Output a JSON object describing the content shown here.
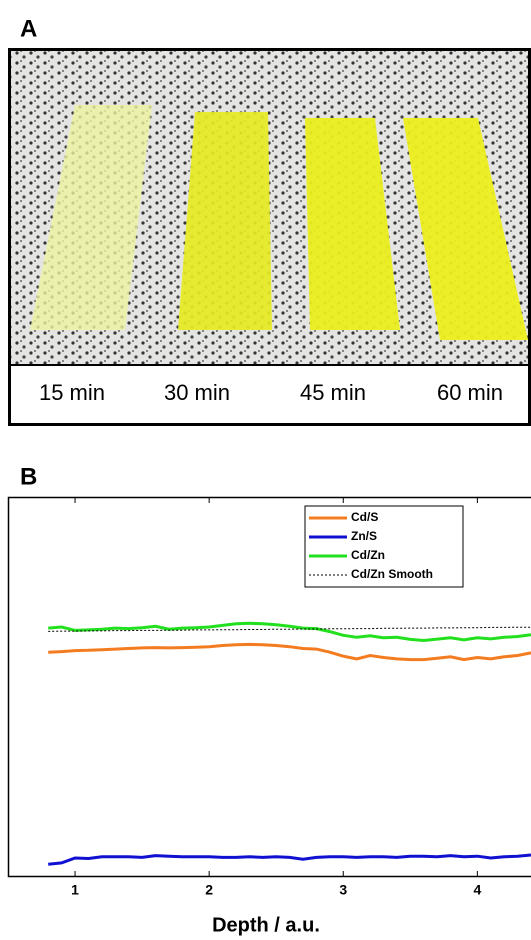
{
  "panel_a": {
    "label": "A",
    "captions": [
      "15 min",
      "30 min",
      "45 min",
      "60 min"
    ]
  },
  "chart_data": {
    "type": "line",
    "label": "B",
    "x_label": "Depth / a.u.",
    "log_y": true,
    "legend": "upper right",
    "xlim": [
      0.5,
      4.4
    ],
    "xticks": [
      1,
      2,
      3,
      4
    ],
    "ylim": [
      0.09,
      20
    ],
    "x": [
      0.8,
      0.9,
      1.0,
      1.1,
      1.2,
      1.3,
      1.4,
      1.5,
      1.6,
      1.7,
      1.8,
      1.9,
      2.0,
      2.1,
      2.2,
      2.3,
      2.4,
      2.5,
      2.6,
      2.7,
      2.8,
      2.9,
      3.0,
      3.1,
      3.2,
      3.3,
      3.4,
      3.5,
      3.6,
      3.7,
      3.8,
      3.9,
      4.0,
      4.1,
      4.2,
      4.3,
      4.4
    ],
    "series": [
      {
        "name": "Cd/S",
        "color": "#f47c20",
        "style": "solid",
        "values": [
          2.2,
          2.22,
          2.25,
          2.26,
          2.28,
          2.3,
          2.32,
          2.34,
          2.35,
          2.34,
          2.35,
          2.36,
          2.38,
          2.42,
          2.45,
          2.46,
          2.45,
          2.42,
          2.38,
          2.32,
          2.3,
          2.2,
          2.08,
          2.0,
          2.1,
          2.04,
          2.0,
          1.98,
          1.98,
          2.02,
          2.06,
          1.98,
          2.04,
          2.0,
          2.06,
          2.1,
          2.18
        ]
      },
      {
        "name": "Zn/S",
        "color": "#1010d0",
        "style": "solid",
        "values": [
          0.108,
          0.11,
          0.118,
          0.117,
          0.12,
          0.12,
          0.12,
          0.119,
          0.122,
          0.121,
          0.12,
          0.12,
          0.12,
          0.119,
          0.119,
          0.12,
          0.119,
          0.12,
          0.119,
          0.116,
          0.119,
          0.12,
          0.12,
          0.119,
          0.12,
          0.12,
          0.119,
          0.121,
          0.121,
          0.12,
          0.122,
          0.12,
          0.121,
          0.118,
          0.12,
          0.121,
          0.123
        ]
      },
      {
        "name": "Cd/Zn",
        "color": "#22e01e",
        "style": "solid",
        "values": [
          3.1,
          3.15,
          3.0,
          3.02,
          3.05,
          3.1,
          3.08,
          3.12,
          3.18,
          3.05,
          3.1,
          3.12,
          3.15,
          3.22,
          3.3,
          3.32,
          3.3,
          3.25,
          3.18,
          3.1,
          3.08,
          2.95,
          2.8,
          2.72,
          2.78,
          2.7,
          2.72,
          2.64,
          2.6,
          2.65,
          2.7,
          2.62,
          2.7,
          2.66,
          2.72,
          2.75,
          2.82
        ]
      },
      {
        "name": "Cd/Zn Smooth",
        "color": "#000000",
        "style": "dotted",
        "values": [
          2.96,
          2.97,
          2.97,
          2.98,
          2.98,
          2.99,
          2.99,
          3.0,
          3.0,
          3.01,
          3.01,
          3.02,
          3.02,
          3.03,
          3.03,
          3.04,
          3.04,
          3.05,
          3.05,
          3.06,
          3.06,
          3.07,
          3.07,
          3.08,
          3.08,
          3.09,
          3.09,
          3.1,
          3.1,
          3.11,
          3.11,
          3.12,
          3.12,
          3.13,
          3.13,
          3.14,
          3.14
        ]
      }
    ]
  }
}
